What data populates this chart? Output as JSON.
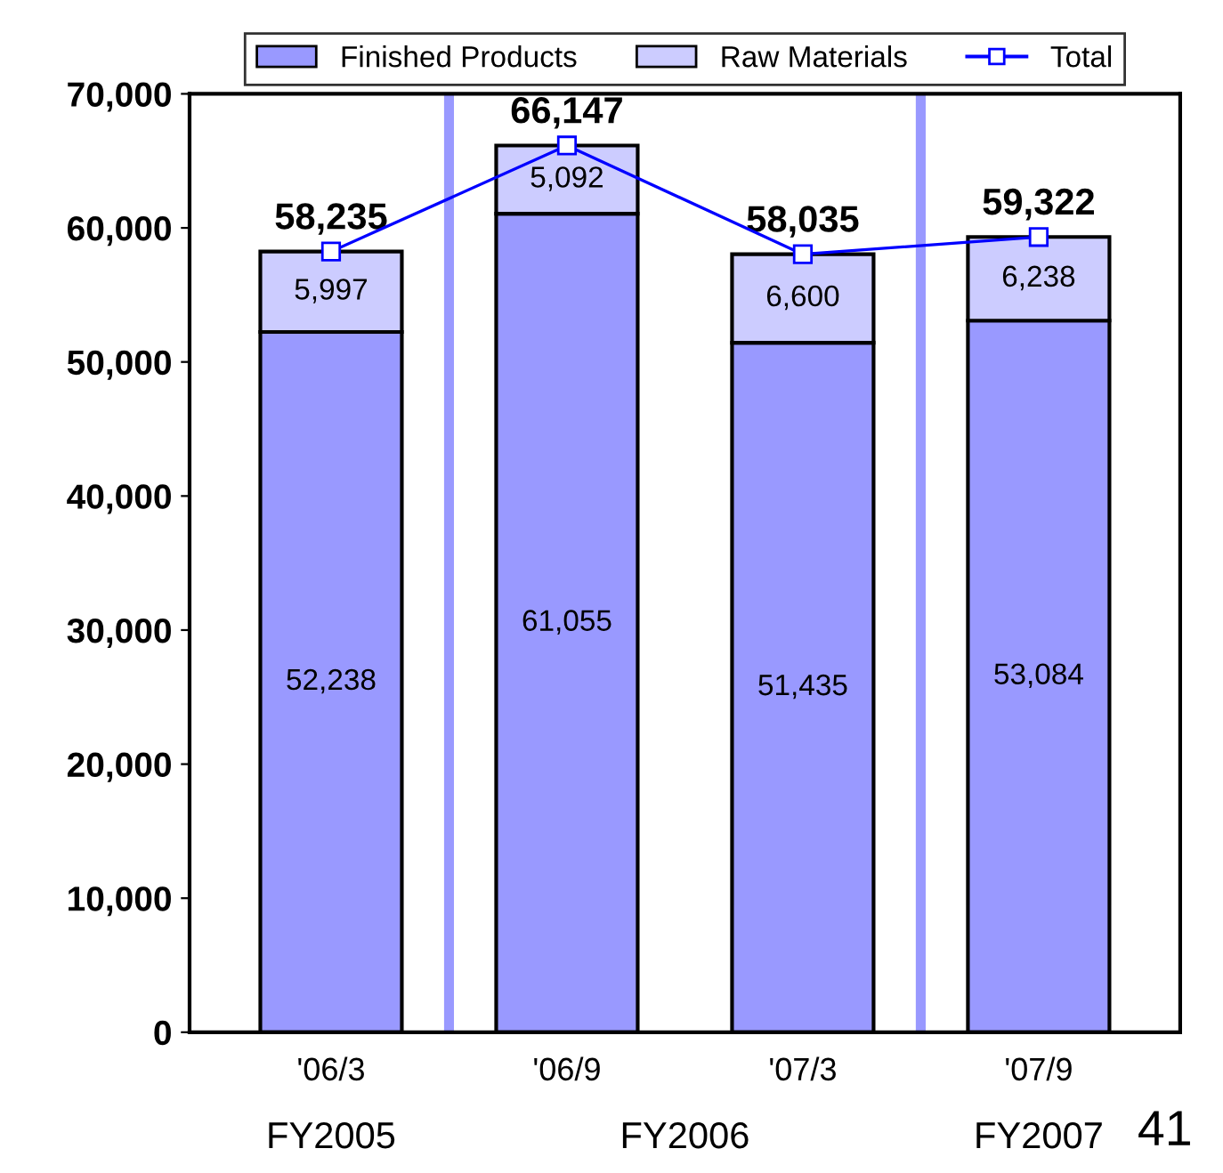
{
  "chart_data": {
    "type": "bar",
    "stacked": true,
    "categories": [
      "'06/3",
      "'06/9",
      "'07/3",
      "'07/9"
    ],
    "series": [
      {
        "name": "Finished Products",
        "color": "#9999ff",
        "values": [
          52238,
          61055,
          51435,
          53084
        ],
        "value_labels": [
          "52,238",
          "61,055",
          "51,435",
          "53,084"
        ]
      },
      {
        "name": "Raw Materials",
        "color": "#ccccff",
        "values": [
          5997,
          5092,
          6600,
          6238
        ],
        "value_labels": [
          "5,997",
          "5,092",
          "6,600",
          "6,238"
        ]
      },
      {
        "name": "Total",
        "type": "line",
        "color": "#0000ff",
        "marker": "square",
        "values": [
          58235,
          66147,
          58035,
          59322
        ]
      }
    ],
    "totals": [
      "58,235",
      "66,147",
      "58,035",
      "59,322"
    ],
    "ylim": [
      0,
      70000
    ],
    "yticks": [
      {
        "value": 0,
        "label": "0"
      },
      {
        "value": 10000,
        "label": "10,000"
      },
      {
        "value": 20000,
        "label": "20,000"
      },
      {
        "value": 30000,
        "label": "30,000"
      },
      {
        "value": 40000,
        "label": "40,000"
      },
      {
        "value": 50000,
        "label": "50,000"
      },
      {
        "value": 60000,
        "label": "60,000"
      },
      {
        "value": 70000,
        "label": "70,000"
      }
    ],
    "annotations": [
      "FY2005",
      "FY2006",
      "FY2007",
      "41"
    ],
    "grid": false,
    "legend": "top"
  }
}
